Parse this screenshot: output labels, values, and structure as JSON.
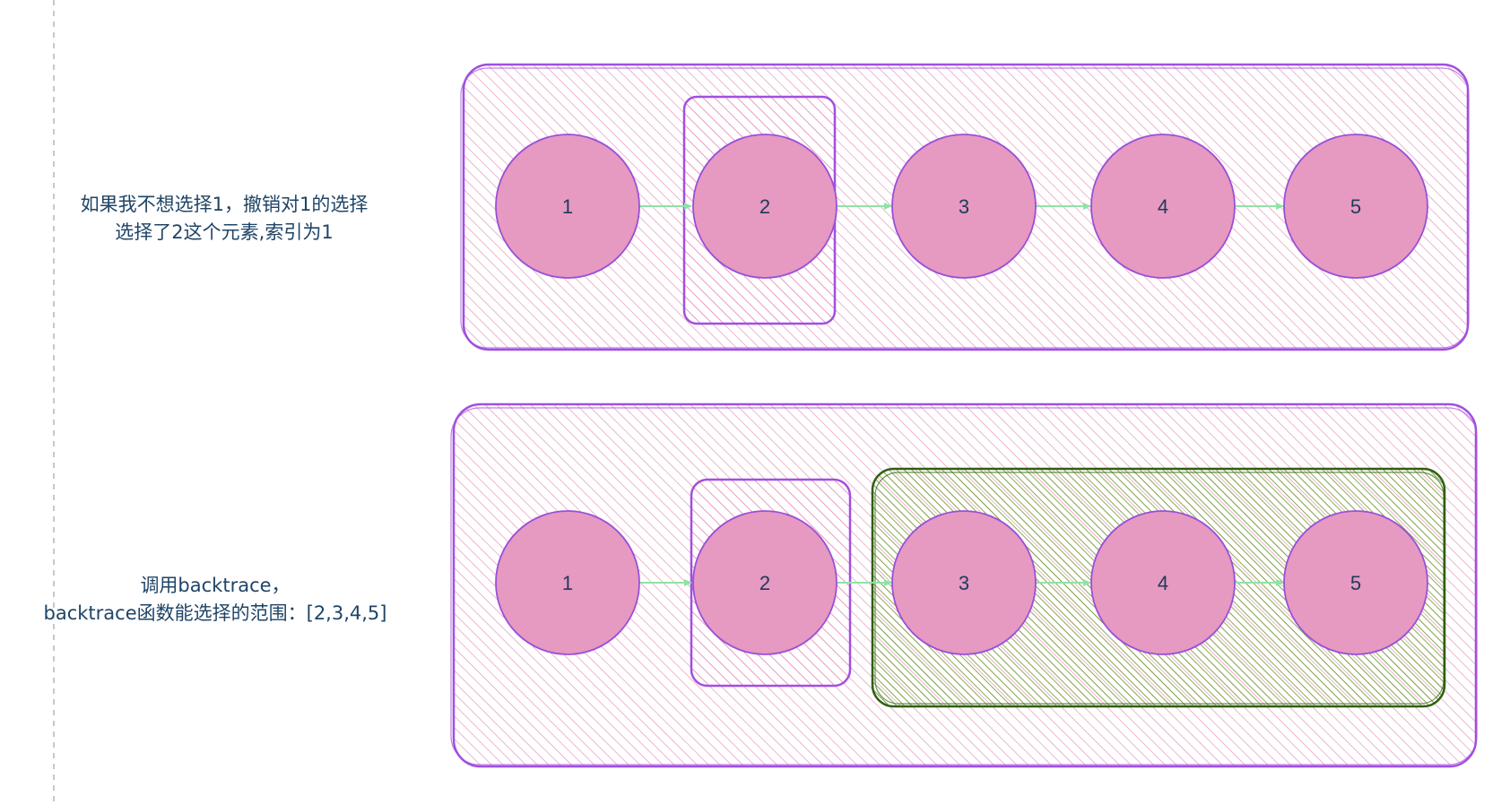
{
  "rows": [
    {
      "caption_lines": [
        "如果我不想选择1，撤销对1的选择",
        "选择了2这个元素,索引为1"
      ],
      "nodes": [
        "1",
        "2",
        "3",
        "4",
        "5"
      ],
      "highlight_green": false
    },
    {
      "caption_lines": [
        "调用backtrace，",
        "backtrace函数能选择的范围：[2,3,4,5]"
      ],
      "nodes": [
        "1",
        "2",
        "3",
        "4",
        "5"
      ],
      "highlight_green": true
    }
  ],
  "colors": {
    "outer_stroke": "#a24fe0",
    "hatch_pink": "#e78db8",
    "node_fill": "#e699c1",
    "node_stroke": "#9a4fd8",
    "arrow": "#8fe3a4",
    "green_stroke": "#2f5f10",
    "hatch_green": "#6a9a26",
    "guide": "#b5b5b5"
  }
}
